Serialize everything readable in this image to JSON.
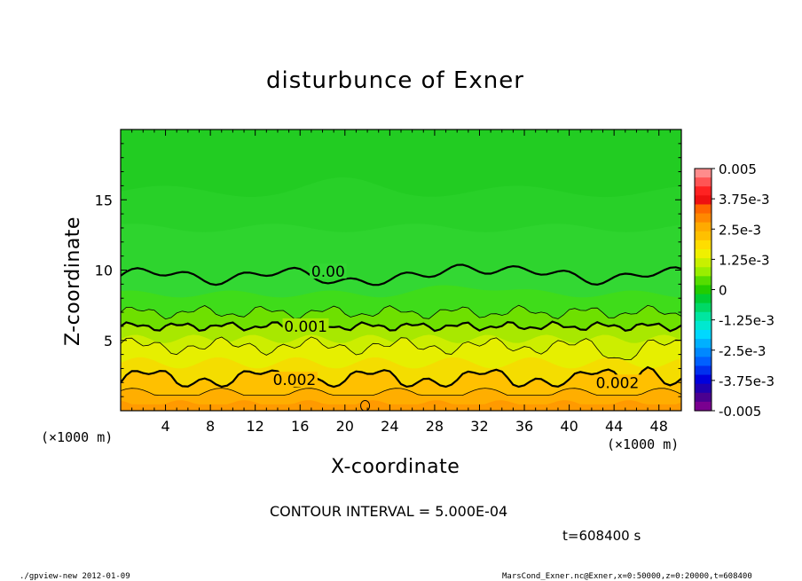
{
  "chart_data": {
    "type": "heatmap",
    "subtype": "filled contour",
    "title": "disturbunce of Exner",
    "xlabel": "X-coordinate",
    "ylabel": "Z-coordinate",
    "x_unit_label": "(×1000 m)",
    "y_unit_label": "(×1000 m)",
    "xlim": [
      0,
      50
    ],
    "ylim": [
      0,
      20
    ],
    "x_ticks": [
      4,
      8,
      12,
      16,
      20,
      24,
      28,
      32,
      36,
      40,
      44,
      48
    ],
    "y_ticks": [
      5,
      10,
      15
    ],
    "colorbar": {
      "vmin": -0.005,
      "vmax": 0.005,
      "labels": [
        {
          "value": 0.005,
          "text": "0.005"
        },
        {
          "value": 0.00375,
          "text": "3.75e-3"
        },
        {
          "value": 0.0025,
          "text": "2.5e-3"
        },
        {
          "value": 0.00125,
          "text": "1.25e-3"
        },
        {
          "value": 0,
          "text": "0"
        },
        {
          "value": -0.00125,
          "text": "-1.25e-3"
        },
        {
          "value": -0.0025,
          "text": "-2.5e-3"
        },
        {
          "value": -0.00375,
          "text": "-3.75e-3"
        },
        {
          "value": -0.005,
          "text": "-0.005"
        }
      ],
      "colors": [
        "#ff8c8c",
        "#ff5555",
        "#ff2222",
        "#ee1111",
        "#ff6600",
        "#ff8800",
        "#ffaa00",
        "#ffc000",
        "#ffdd00",
        "#f0f000",
        "#c8f000",
        "#99ee00",
        "#55dd00",
        "#22cc00",
        "#00cc33",
        "#00d866",
        "#00e6a0",
        "#00e8d0",
        "#00d8ff",
        "#00b0ff",
        "#0088ff",
        "#0060ff",
        "#0030ee",
        "#0000dd",
        "#2000b0",
        "#4b0090",
        "#7a0090"
      ]
    },
    "contour_labels": [
      {
        "text": "0.00",
        "x": 18.5,
        "z": 9.9
      },
      {
        "text": "0.001",
        "x": 16.5,
        "z": 6.0
      },
      {
        "text": "0.002",
        "x": 15.5,
        "z": 2.2
      },
      {
        "text": "0.002",
        "x": 44.3,
        "z": 2.0
      }
    ],
    "contour_interval_text": "CONTOUR INTERVAL = 5.000E-04",
    "time_text": "t=608400 s"
  },
  "footer": {
    "left": "./gpview-new   2012-01-09",
    "right": "MarsCond_Exner.nc@Exner,x=0:50000,z=0:20000,t=608400"
  }
}
